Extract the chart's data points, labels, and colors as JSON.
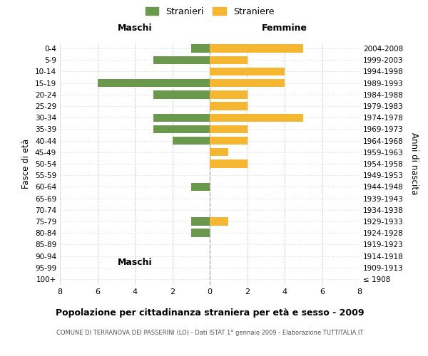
{
  "age_groups": [
    "100+",
    "95-99",
    "90-94",
    "85-89",
    "80-84",
    "75-79",
    "70-74",
    "65-69",
    "60-64",
    "55-59",
    "50-54",
    "45-49",
    "40-44",
    "35-39",
    "30-34",
    "25-29",
    "20-24",
    "15-19",
    "10-14",
    "5-9",
    "0-4"
  ],
  "birth_years": [
    "≤ 1908",
    "1909-1913",
    "1914-1918",
    "1919-1923",
    "1924-1928",
    "1929-1933",
    "1934-1938",
    "1939-1943",
    "1944-1948",
    "1949-1953",
    "1954-1958",
    "1959-1963",
    "1964-1968",
    "1969-1973",
    "1974-1978",
    "1979-1983",
    "1984-1988",
    "1989-1993",
    "1994-1998",
    "1999-2003",
    "2004-2008"
  ],
  "males": [
    0,
    0,
    0,
    0,
    1,
    1,
    0,
    0,
    1,
    0,
    0,
    0,
    2,
    3,
    3,
    0,
    3,
    6,
    0,
    3,
    1
  ],
  "females": [
    0,
    0,
    0,
    0,
    0,
    1,
    0,
    0,
    0,
    0,
    2,
    1,
    2,
    2,
    5,
    2,
    2,
    4,
    4,
    2,
    5
  ],
  "male_color": "#6a994e",
  "female_color": "#f5b731",
  "background_color": "#ffffff",
  "grid_color": "#cccccc",
  "title": "Popolazione per cittadinanza straniera per età e sesso - 2009",
  "subtitle": "COMUNE DI TERRANOVA DEI PASSERINI (LO) - Dati ISTAT 1° gennaio 2009 - Elaborazione TUTTITALIA.IT",
  "ylabel_left": "Fasce di età",
  "ylabel_right": "Anni di nascita",
  "header_left": "Maschi",
  "header_right": "Femmine",
  "legend_male": "Stranieri",
  "legend_female": "Straniere",
  "xlim": 8,
  "bar_height": 0.7
}
